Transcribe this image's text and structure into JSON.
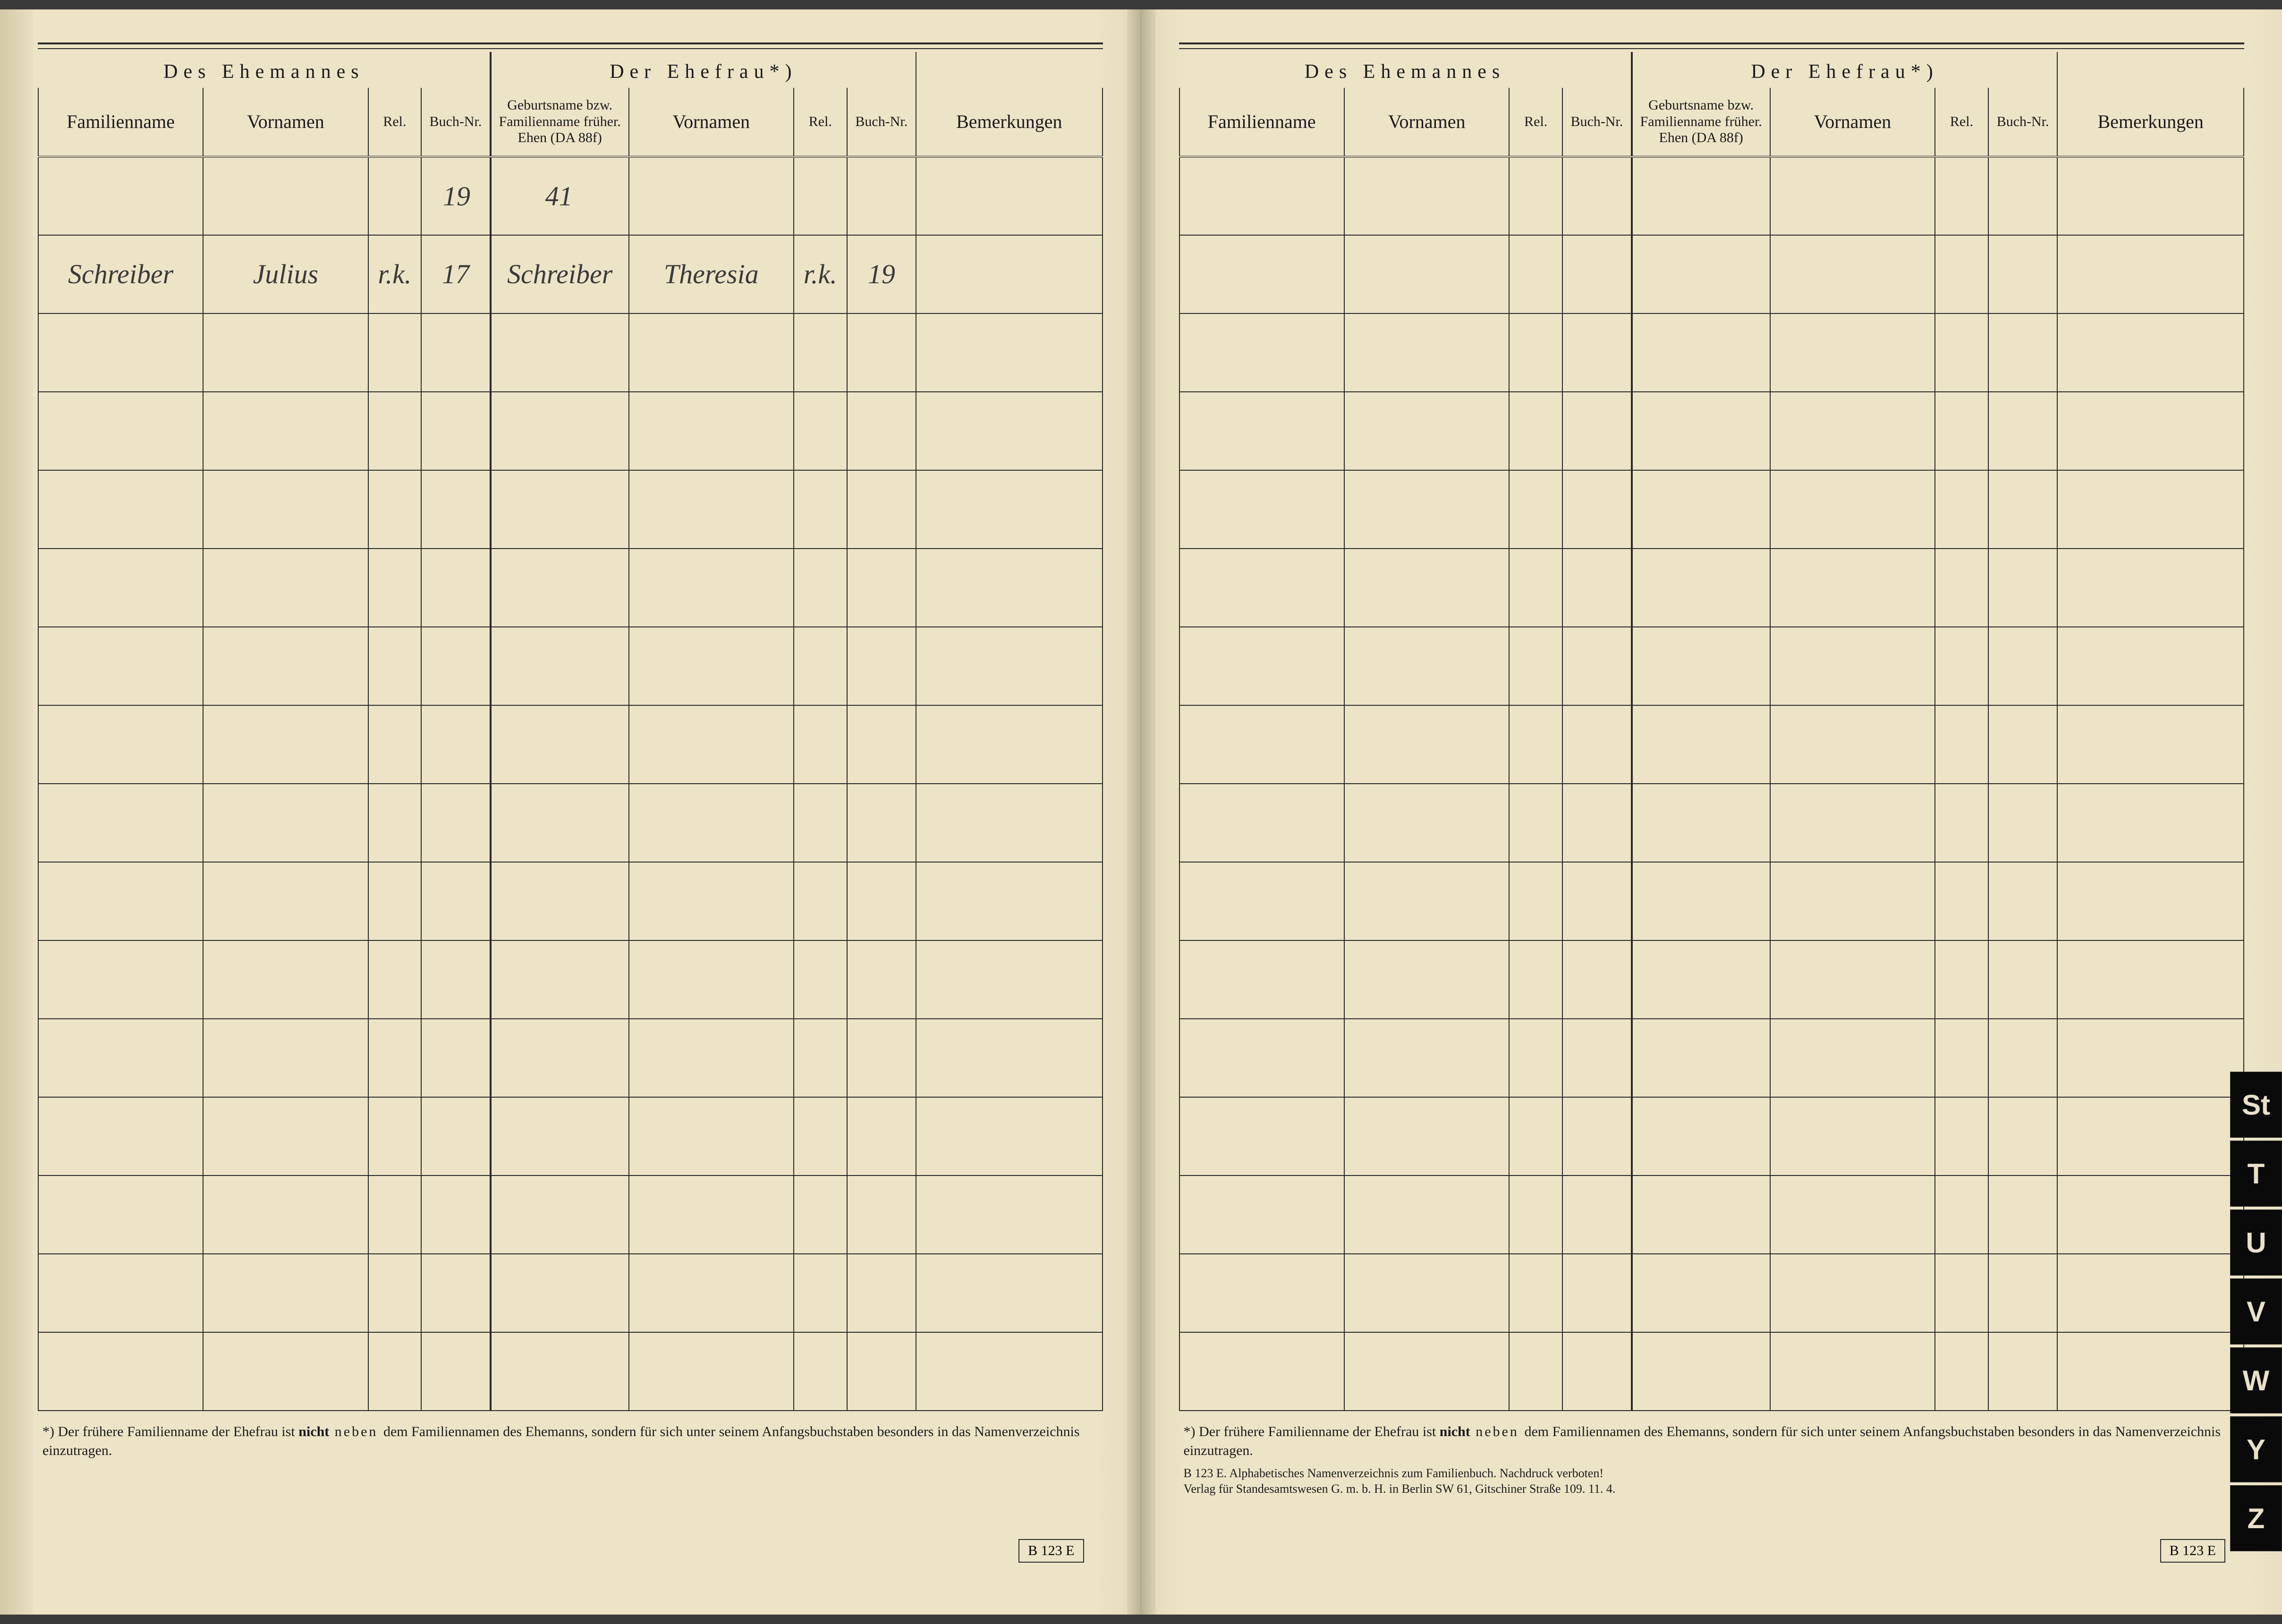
{
  "colors": {
    "paper": "#ede4c8",
    "ink": "#2a2a2a",
    "handwriting": "#3a3a3a",
    "tab_bg": "#0a0a0a",
    "tab_fg": "#e8e0c8"
  },
  "headers": {
    "husband_group": "Des Ehemannes",
    "wife_group": "Der Ehefrau*)",
    "familienname": "Familienname",
    "vornamen": "Vornamen",
    "rel": "Rel.",
    "buch_nr": "Buch-Nr.",
    "geburtsname": "Geburtsname bzw. Familienname früher. Ehen (DA 88f)",
    "bemerkungen": "Bemerkungen"
  },
  "left_rows": [
    {
      "fam": "",
      "vor": "",
      "rel": "",
      "buch": "19",
      "geb": "41",
      "vor2": "",
      "rel2": "",
      "buch2": "",
      "bem": ""
    },
    {
      "fam": "Schreiber",
      "vor": "Julius",
      "rel": "r.k.",
      "buch": "17",
      "geb": "Schreiber",
      "vor2": "Theresia",
      "rel2": "r.k.",
      "buch2": "19",
      "bem": ""
    },
    {
      "fam": "",
      "vor": "",
      "rel": "",
      "buch": "",
      "geb": "",
      "vor2": "",
      "rel2": "",
      "buch2": "",
      "bem": ""
    },
    {
      "fam": "",
      "vor": "",
      "rel": "",
      "buch": "",
      "geb": "",
      "vor2": "",
      "rel2": "",
      "buch2": "",
      "bem": ""
    },
    {
      "fam": "",
      "vor": "",
      "rel": "",
      "buch": "",
      "geb": "",
      "vor2": "",
      "rel2": "",
      "buch2": "",
      "bem": ""
    },
    {
      "fam": "",
      "vor": "",
      "rel": "",
      "buch": "",
      "geb": "",
      "vor2": "",
      "rel2": "",
      "buch2": "",
      "bem": ""
    },
    {
      "fam": "",
      "vor": "",
      "rel": "",
      "buch": "",
      "geb": "",
      "vor2": "",
      "rel2": "",
      "buch2": "",
      "bem": ""
    },
    {
      "fam": "",
      "vor": "",
      "rel": "",
      "buch": "",
      "geb": "",
      "vor2": "",
      "rel2": "",
      "buch2": "",
      "bem": ""
    },
    {
      "fam": "",
      "vor": "",
      "rel": "",
      "buch": "",
      "geb": "",
      "vor2": "",
      "rel2": "",
      "buch2": "",
      "bem": ""
    },
    {
      "fam": "",
      "vor": "",
      "rel": "",
      "buch": "",
      "geb": "",
      "vor2": "",
      "rel2": "",
      "buch2": "",
      "bem": ""
    },
    {
      "fam": "",
      "vor": "",
      "rel": "",
      "buch": "",
      "geb": "",
      "vor2": "",
      "rel2": "",
      "buch2": "",
      "bem": ""
    },
    {
      "fam": "",
      "vor": "",
      "rel": "",
      "buch": "",
      "geb": "",
      "vor2": "",
      "rel2": "",
      "buch2": "",
      "bem": ""
    },
    {
      "fam": "",
      "vor": "",
      "rel": "",
      "buch": "",
      "geb": "",
      "vor2": "",
      "rel2": "",
      "buch2": "",
      "bem": ""
    },
    {
      "fam": "",
      "vor": "",
      "rel": "",
      "buch": "",
      "geb": "",
      "vor2": "",
      "rel2": "",
      "buch2": "",
      "bem": ""
    },
    {
      "fam": "",
      "vor": "",
      "rel": "",
      "buch": "",
      "geb": "",
      "vor2": "",
      "rel2": "",
      "buch2": "",
      "bem": ""
    },
    {
      "fam": "",
      "vor": "",
      "rel": "",
      "buch": "",
      "geb": "",
      "vor2": "",
      "rel2": "",
      "buch2": "",
      "bem": ""
    }
  ],
  "right_rows_count": 16,
  "footnote": {
    "text_prefix": "*) Der frühere Familienname der Ehefrau ist ",
    "bold_word": "nicht",
    "spaced_word": " neben ",
    "text_suffix": "dem Familiennamen des Ehemanns, sondern für sich unter seinem Anfangsbuchstaben besonders in das Namenverzeichnis einzutragen."
  },
  "imprint": {
    "line1": "B 123 E. Alphabetisches Namenverzeichnis zum Familienbuch. Nachdruck verboten!",
    "line2": "Verlag für Standesamtswesen G. m. b. H. in Berlin SW 61, Gitschiner Straße 109. 11. 4."
  },
  "corner_code": "B 123 E",
  "tabs": [
    "St",
    "T",
    "U",
    "V",
    "W",
    "Y",
    "Z"
  ]
}
